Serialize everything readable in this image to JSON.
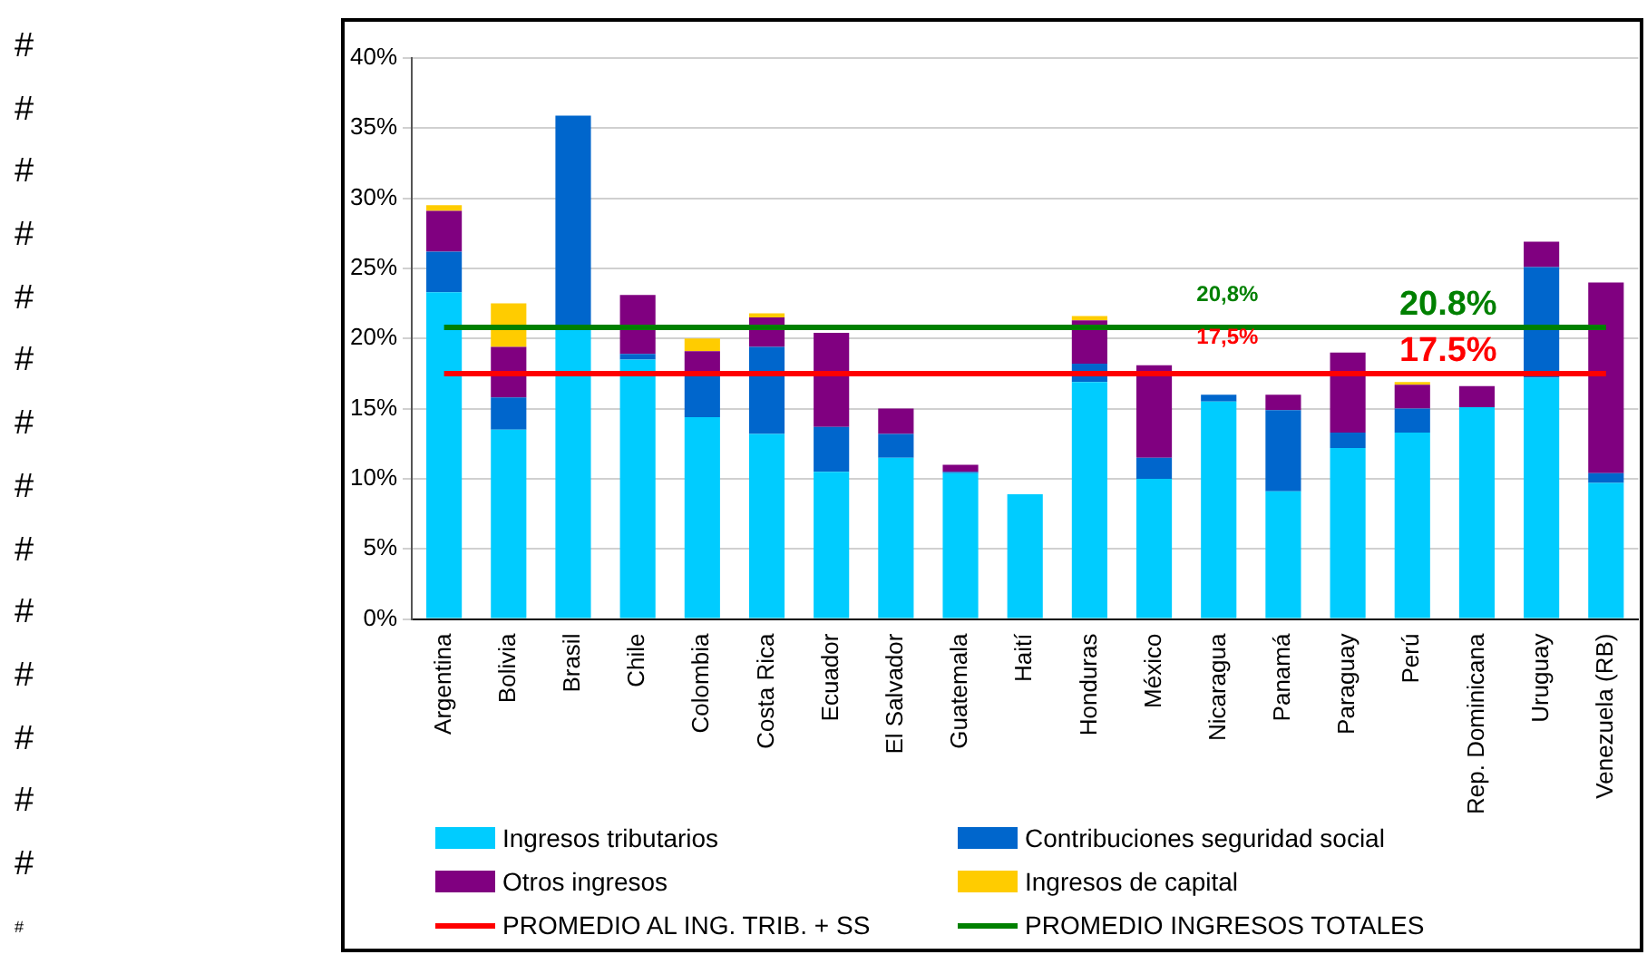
{
  "chart_data": {
    "type": "bar",
    "stacked": true,
    "categories": [
      "Argentina",
      "Bolivia",
      "Brasil",
      "Chile",
      "Colombia",
      "Costa Rica",
      "Ecuador",
      "El Salvador",
      "Guatemala",
      "Haití",
      "Honduras",
      "México",
      "Nicaragua",
      "Panamá",
      "Paraguay",
      "Perú",
      "Rep. Dominicana",
      "Uruguay",
      "Venezuela (RB)"
    ],
    "series": [
      {
        "name": "Ingresos tributarios",
        "color": "#00ccff",
        "values": [
          23.3,
          13.5,
          20.7,
          18.5,
          14.4,
          13.2,
          10.5,
          11.5,
          10.4,
          8.9,
          16.9,
          10.0,
          15.5,
          9.1,
          12.2,
          13.3,
          15.1,
          17.2,
          9.7
        ]
      },
      {
        "name": "Contribuciones seguridad social",
        "color": "#0066cc",
        "values": [
          2.9,
          2.3,
          15.2,
          0.4,
          3.1,
          6.2,
          3.2,
          1.7,
          0.1,
          null,
          1.3,
          1.5,
          0.5,
          5.8,
          1.1,
          1.7,
          null,
          7.9,
          0.7
        ]
      },
      {
        "name": "Otros ingresos",
        "color": "#800080",
        "values": [
          2.9,
          3.6,
          null,
          4.2,
          1.6,
          2.1,
          6.7,
          1.8,
          0.5,
          null,
          3.1,
          6.6,
          null,
          1.1,
          5.7,
          1.7,
          1.5,
          1.8,
          13.6
        ]
      },
      {
        "name": "Ingresos de capital",
        "color": "#ffcc00",
        "values": [
          0.4,
          3.1,
          null,
          null,
          0.9,
          0.3,
          null,
          null,
          null,
          null,
          0.3,
          null,
          null,
          null,
          null,
          0.2,
          null,
          null,
          null
        ]
      },
      {
        "name": "PROMEDIO AL ING. TRIB. + SS",
        "type": "line",
        "color": "#ff0000",
        "values": [
          17.5,
          17.5,
          17.5,
          17.5,
          17.5,
          17.5,
          17.5,
          17.5,
          17.5,
          17.5,
          17.5,
          17.5,
          17.5,
          17.5,
          17.5,
          17.5,
          17.5,
          17.5,
          17.5
        ]
      },
      {
        "name": "PROMEDIO INGRESOS TOTALES",
        "type": "line",
        "color": "#008000",
        "values": [
          20.8,
          20.8,
          20.8,
          20.8,
          20.8,
          20.8,
          20.8,
          20.8,
          20.8,
          20.8,
          20.8,
          20.8,
          20.8,
          20.8,
          20.8,
          20.8,
          20.8,
          20.8,
          20.8
        ]
      }
    ],
    "ylim": [
      0,
      40
    ],
    "yticks": [
      {
        "value": 0,
        "label": "0%"
      },
      {
        "value": 5,
        "label": "5%"
      },
      {
        "value": 10,
        "label": "10%"
      },
      {
        "value": 15,
        "label": "15%"
      },
      {
        "value": 20,
        "label": "20%"
      },
      {
        "value": 25,
        "label": "25%"
      },
      {
        "value": 30,
        "label": "30%"
      },
      {
        "value": 35,
        "label": "35%"
      },
      {
        "value": 40,
        "label": "40%"
      }
    ],
    "grid": "y",
    "legend": "bottom",
    "marker": "none",
    "annotations": [
      "20,8%",
      "17,5%",
      "20.8%",
      "17.5%",
      "#",
      "#",
      "#",
      "#",
      "#",
      "#",
      "#",
      "#",
      "#",
      "#",
      "#",
      "#",
      "#",
      "#",
      "#"
    ]
  }
}
